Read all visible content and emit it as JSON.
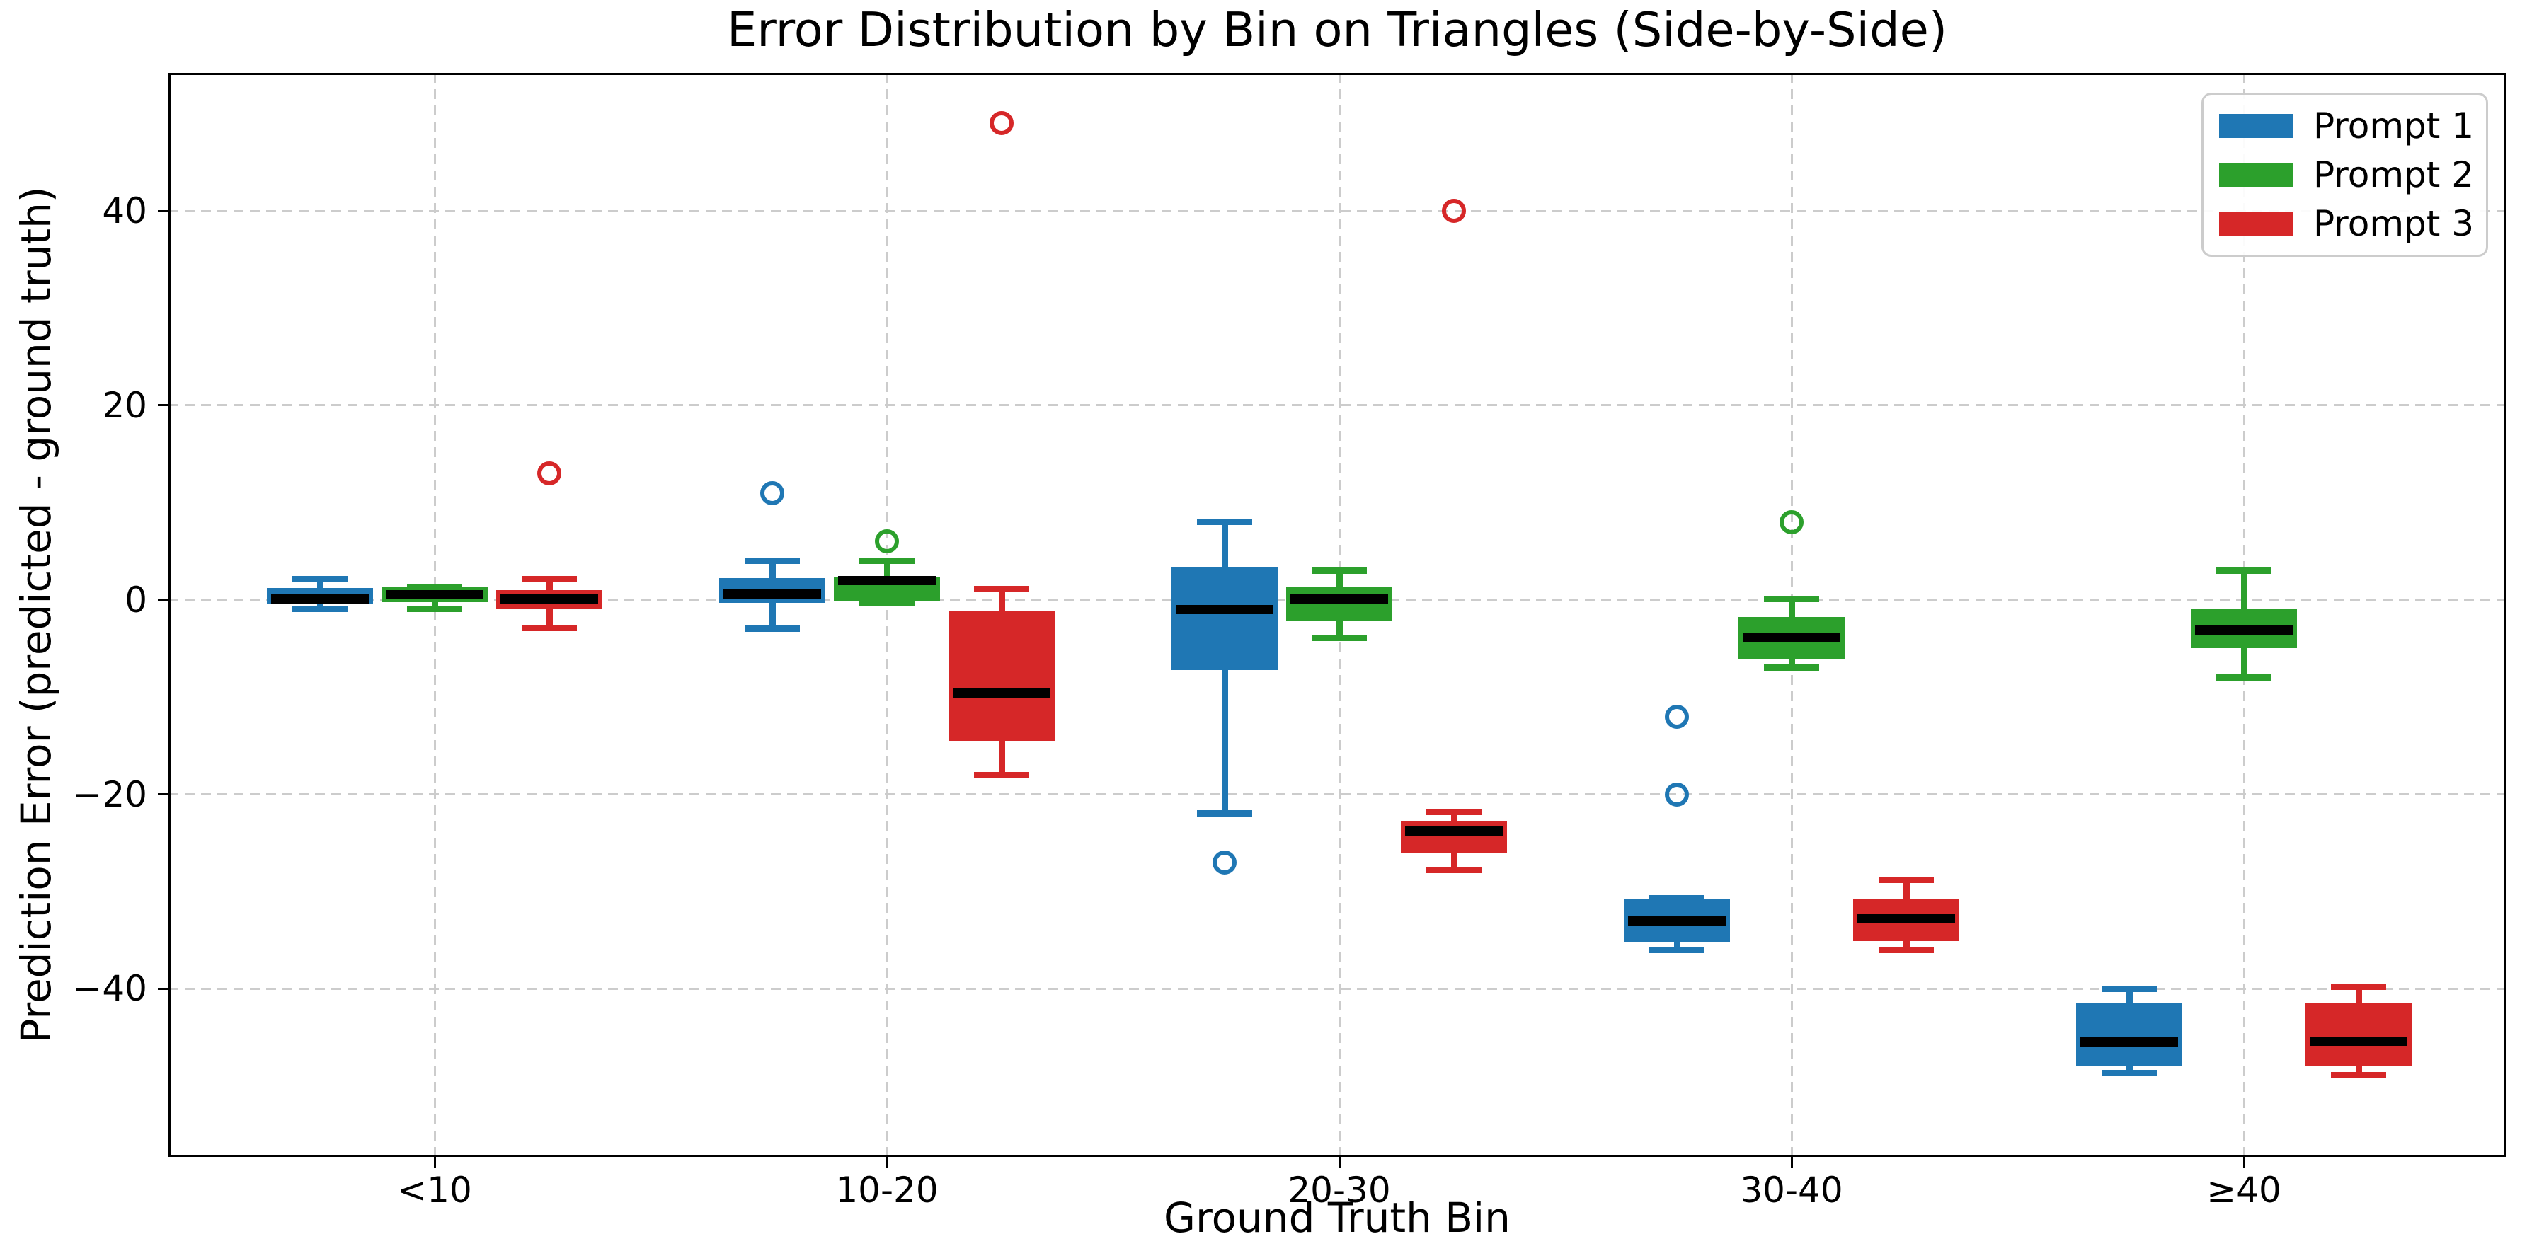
{
  "chart_data": {
    "type": "boxplot",
    "title": "Error Distribution by Bin on Triangles (Side-by-Side)",
    "xlabel": "Ground Truth Bin",
    "ylabel": "Prediction Error (predicted - ground truth)",
    "categories": [
      "<10",
      "10-20",
      "20-30",
      "30-40",
      "≥40"
    ],
    "yticks": [
      40,
      20,
      0,
      -20,
      -40
    ],
    "ytick_labels": [
      "40",
      "20",
      "0",
      "−20",
      "−40"
    ],
    "ylim": [
      -57.3,
      54.2
    ],
    "grid": true,
    "grid_color": "#cccccc",
    "legend_position": "upper right",
    "series": [
      {
        "name": "Prompt 1",
        "color": "#1f77b4",
        "boxes": [
          {
            "whislo": -0.9,
            "q1": -0.4,
            "med": 0.1,
            "q3": 1.2,
            "whishi": 2.1,
            "fliers": []
          },
          {
            "whislo": -3.0,
            "q1": -0.3,
            "med": 0.6,
            "q3": 2.2,
            "whishi": 4.0,
            "fliers": [
              11
            ]
          },
          {
            "whislo": -22.0,
            "q1": -7.2,
            "med": -1.0,
            "q3": 3.3,
            "whishi": 8.0,
            "fliers": [
              -27
            ]
          },
          {
            "whislo": -36.0,
            "q1": -35.2,
            "med": -33.0,
            "q3": -30.7,
            "whishi": -30.7,
            "fliers": [
              -12,
              -20
            ]
          },
          {
            "whislo": -48.7,
            "q1": -47.9,
            "med": -45.5,
            "q3": -41.5,
            "whishi": -40.0,
            "fliers": []
          }
        ]
      },
      {
        "name": "Prompt 2",
        "color": "#2ca02c",
        "boxes": [
          {
            "whislo": -0.9,
            "q1": -0.25,
            "med": 0.55,
            "q3": 1.3,
            "whishi": 1.3,
            "fliers": []
          },
          {
            "whislo": -0.3,
            "q1": -0.15,
            "med": 2.0,
            "q3": 2.35,
            "whishi": 4.0,
            "fliers": [
              6
            ]
          },
          {
            "whislo": -3.9,
            "q1": -2.1,
            "med": 0.1,
            "q3": 1.3,
            "whishi": 3.0,
            "fliers": []
          },
          {
            "whislo": -7.0,
            "q1": -6.1,
            "med": -3.9,
            "q3": -1.8,
            "whishi": 0.1,
            "fliers": [
              8
            ]
          },
          {
            "whislo": -8.0,
            "q1": -5.0,
            "med": -3.1,
            "q3": -0.9,
            "whishi": 3.0,
            "fliers": []
          }
        ]
      },
      {
        "name": "Prompt 3",
        "color": "#d62728",
        "boxes": [
          {
            "whislo": -2.9,
            "q1": -0.9,
            "med": 0.1,
            "q3": 1.0,
            "whishi": 2.1,
            "fliers": [
              13
            ]
          },
          {
            "whislo": -18.0,
            "q1": -14.5,
            "med": -9.6,
            "q3": -1.2,
            "whishi": 1.1,
            "fliers": [
              49
            ]
          },
          {
            "whislo": -27.8,
            "q1": -26.1,
            "med": -23.8,
            "q3": -22.7,
            "whishi": -21.8,
            "fliers": [
              40
            ]
          },
          {
            "whislo": -36.0,
            "q1": -35.1,
            "med": -32.8,
            "q3": -30.7,
            "whishi": -28.8,
            "fliers": []
          },
          {
            "whislo": -48.9,
            "q1": -47.9,
            "med": -45.4,
            "q3": -41.5,
            "whishi": -39.8,
            "fliers": []
          }
        ]
      }
    ]
  }
}
